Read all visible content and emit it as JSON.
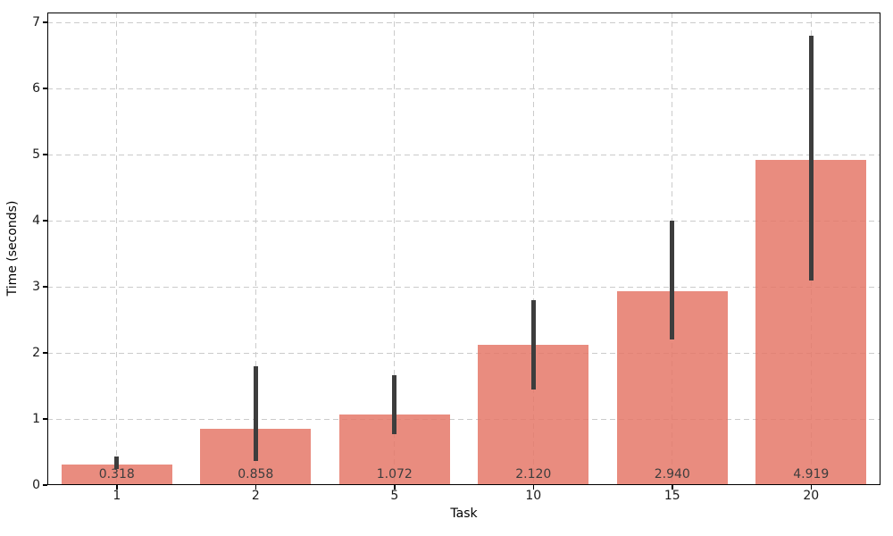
{
  "chart_data": {
    "type": "bar",
    "title": "",
    "xlabel": "Task",
    "ylabel": "Time (seconds)",
    "categories": [
      "1",
      "2",
      "5",
      "10",
      "15",
      "20"
    ],
    "values": [
      0.318,
      0.858,
      1.072,
      2.12,
      2.94,
      4.919
    ],
    "value_labels": [
      "0.318",
      "0.858",
      "1.072",
      "2.120",
      "2.940",
      "4.919"
    ],
    "error_low": [
      0.24,
      0.36,
      0.77,
      1.45,
      2.2,
      3.1
    ],
    "error_high": [
      0.43,
      1.8,
      1.66,
      2.8,
      4.0,
      6.8
    ],
    "ylim": [
      0,
      7
    ],
    "yticks": [
      0,
      1,
      2,
      3,
      4,
      5,
      6,
      7
    ],
    "grid": "dashed, horizontal and vertical",
    "legend_position": "none",
    "colors": {
      "bar": "#e57869",
      "bar_alpha": 0.85,
      "error_bar": "#3d3d3d",
      "grid": "#cbcbcb",
      "spine": "#000000",
      "tick_text": "#1a1a1a",
      "value_text": "#3d3d3d"
    }
  }
}
